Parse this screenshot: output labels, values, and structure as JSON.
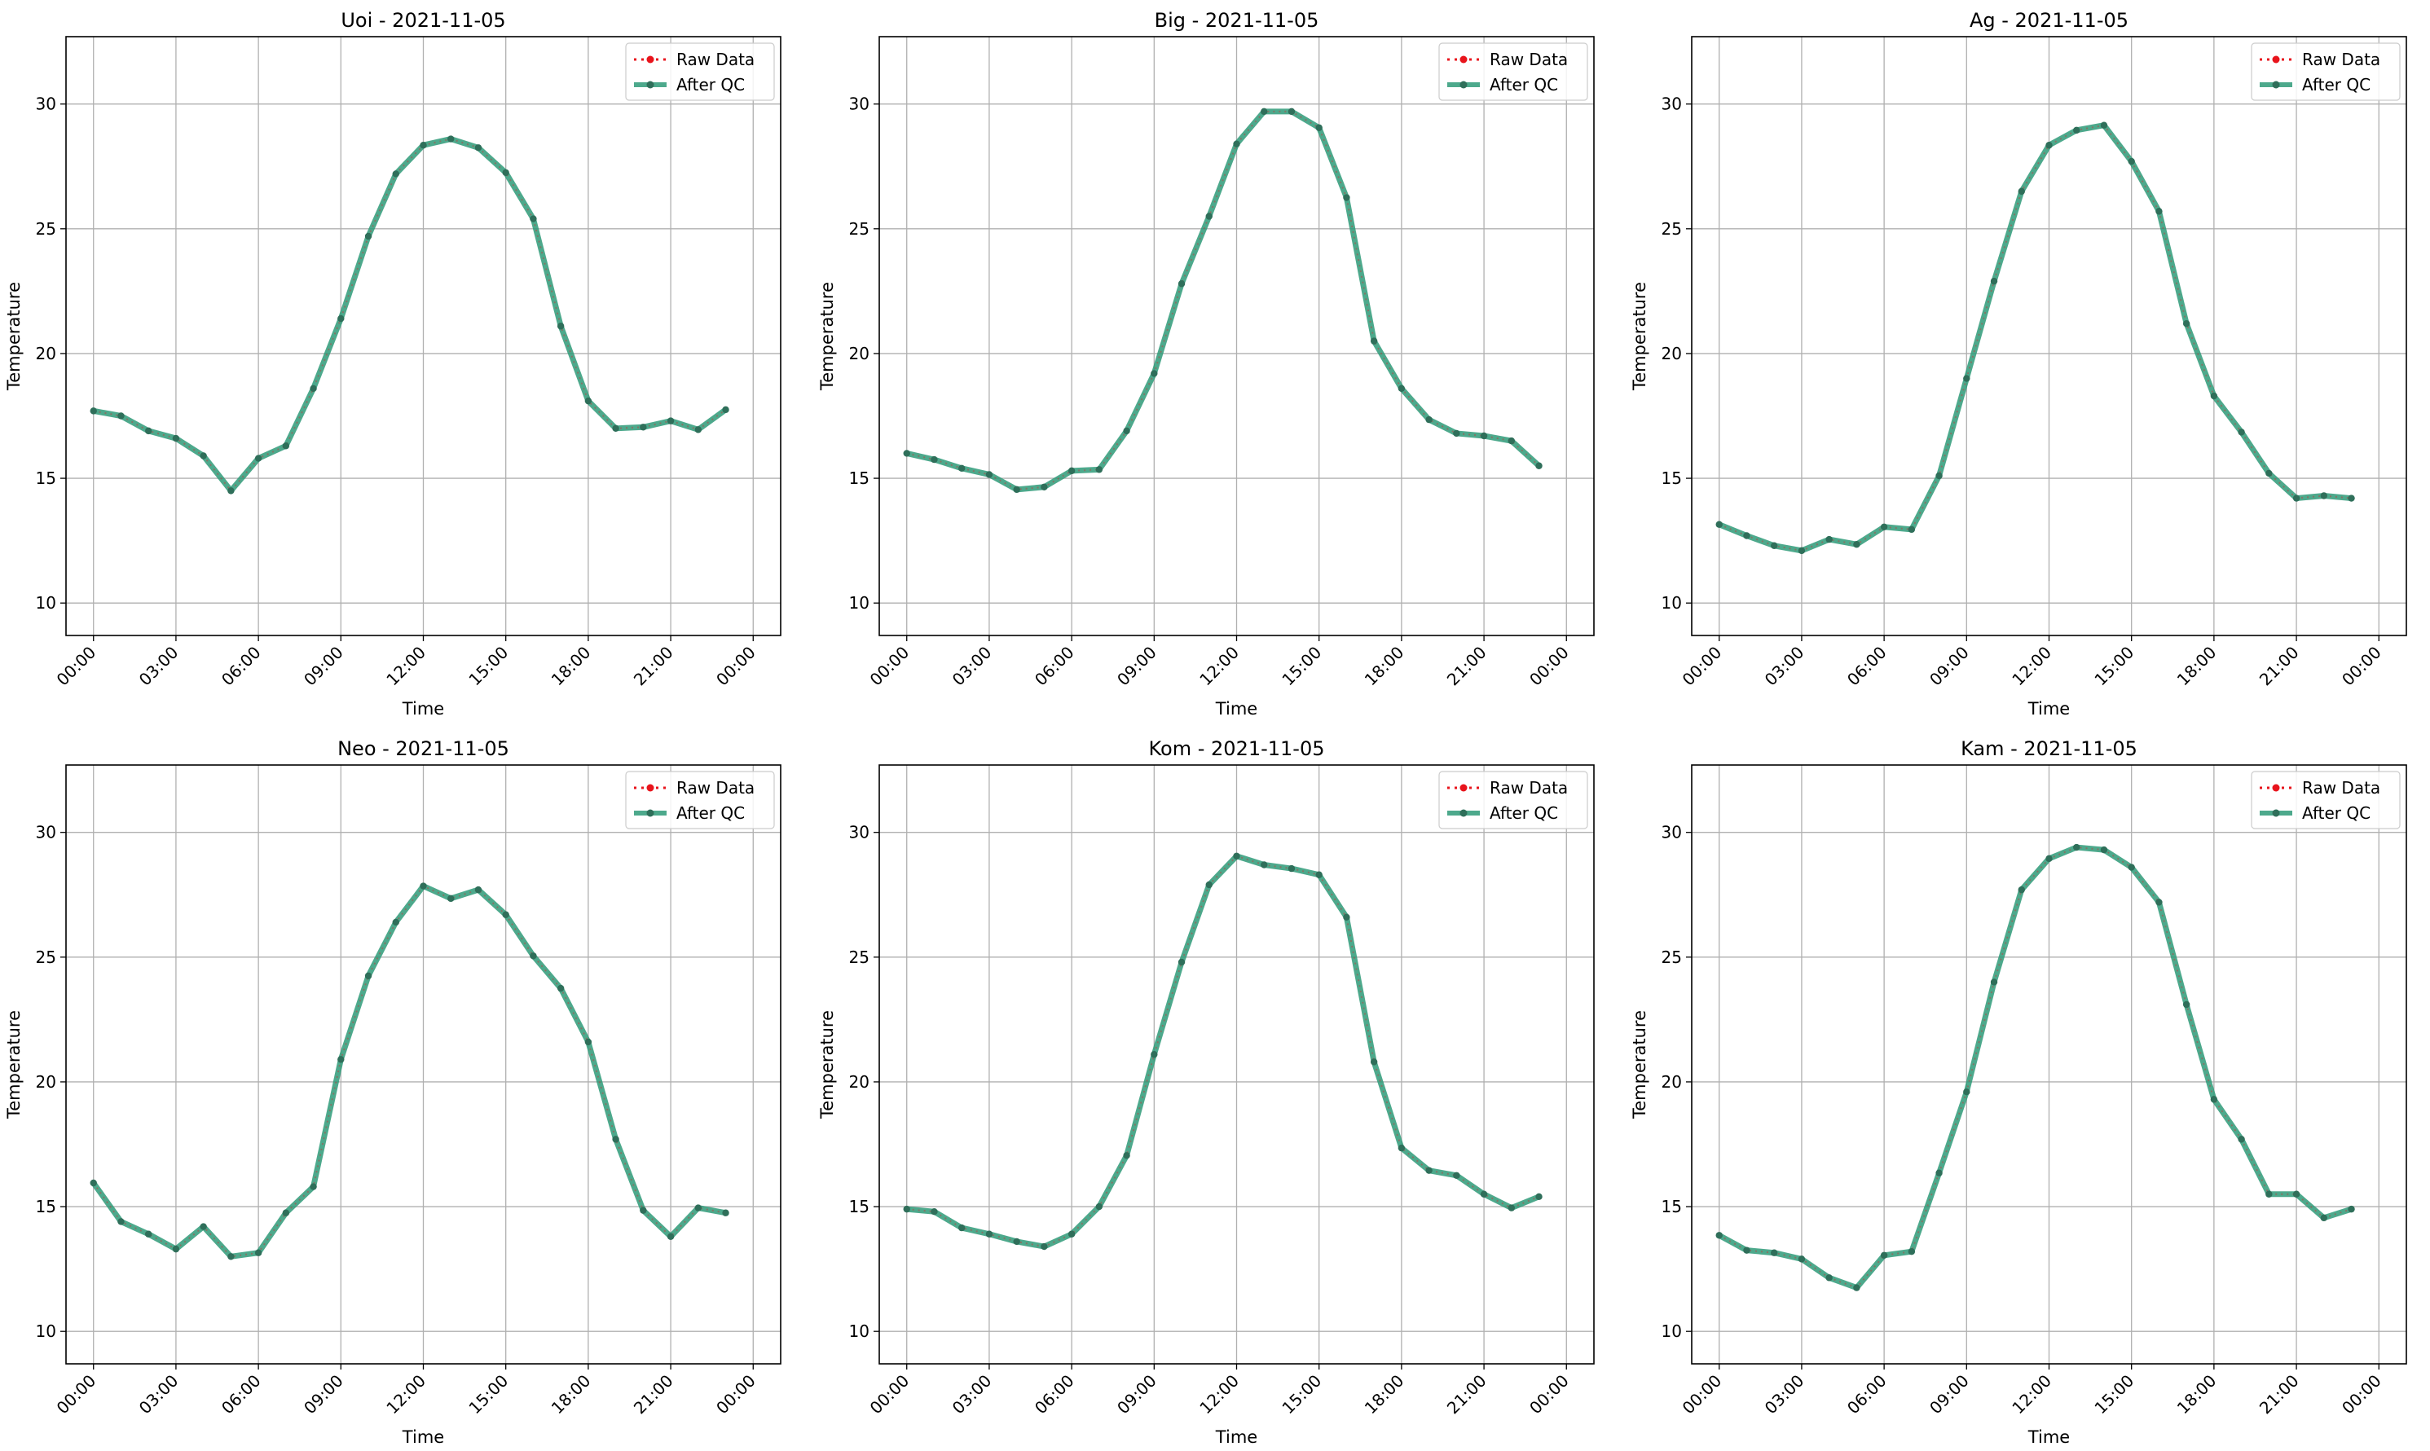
{
  "chart_data": [
    {
      "type": "line",
      "title": "Uoi - 2021-11-05",
      "xlabel": "Time",
      "ylabel": "Temperature",
      "xlim": [
        "00:00",
        "24:00"
      ],
      "ylim": [
        8.7,
        32.7
      ],
      "xticks": [
        "00:00",
        "03:00",
        "06:00",
        "09:00",
        "12:00",
        "15:00",
        "18:00",
        "21:00",
        "00:00"
      ],
      "yticks": [
        10,
        15,
        20,
        25,
        30
      ],
      "grid": true,
      "legend": "upper right",
      "x": [
        "00:00",
        "01:00",
        "02:00",
        "03:00",
        "04:00",
        "05:00",
        "06:00",
        "07:00",
        "08:00",
        "09:00",
        "10:00",
        "11:00",
        "12:00",
        "13:00",
        "14:00",
        "15:00",
        "16:00",
        "17:00",
        "18:00",
        "19:00",
        "20:00",
        "21:00",
        "22:00",
        "23:00"
      ],
      "series": [
        {
          "name": "Raw Data",
          "values": [
            17.7,
            17.5,
            16.9,
            16.6,
            15.9,
            14.5,
            15.8,
            16.3,
            18.6,
            21.4,
            24.7,
            27.2,
            28.35,
            28.6,
            28.25,
            27.25,
            25.4,
            21.1,
            18.1,
            17.0,
            17.05,
            17.3,
            16.95,
            17.75
          ]
        },
        {
          "name": "After QC",
          "values": [
            17.7,
            17.5,
            16.9,
            16.6,
            15.9,
            14.5,
            15.8,
            16.3,
            18.6,
            21.4,
            24.7,
            27.2,
            28.35,
            28.6,
            28.25,
            27.25,
            25.4,
            21.1,
            18.1,
            17.0,
            17.05,
            17.3,
            16.95,
            17.75
          ]
        }
      ]
    },
    {
      "type": "line",
      "title": "Big - 2021-11-05",
      "xlabel": "Time",
      "ylabel": "Temperature",
      "xlim": [
        "00:00",
        "24:00"
      ],
      "ylim": [
        8.7,
        32.7
      ],
      "xticks": [
        "00:00",
        "03:00",
        "06:00",
        "09:00",
        "12:00",
        "15:00",
        "18:00",
        "21:00",
        "00:00"
      ],
      "yticks": [
        10,
        15,
        20,
        25,
        30
      ],
      "grid": true,
      "legend": "upper right",
      "x": [
        "00:00",
        "01:00",
        "02:00",
        "03:00",
        "04:00",
        "05:00",
        "06:00",
        "07:00",
        "08:00",
        "09:00",
        "10:00",
        "11:00",
        "12:00",
        "13:00",
        "14:00",
        "15:00",
        "16:00",
        "17:00",
        "18:00",
        "19:00",
        "20:00",
        "21:00",
        "22:00",
        "23:00"
      ],
      "series": [
        {
          "name": "Raw Data",
          "values": [
            16.0,
            15.75,
            15.4,
            15.15,
            14.55,
            14.65,
            15.3,
            15.35,
            16.9,
            19.2,
            22.8,
            25.5,
            28.4,
            29.7,
            29.7,
            29.05,
            26.25,
            20.5,
            18.6,
            17.35,
            16.8,
            16.7,
            16.5,
            15.5
          ]
        },
        {
          "name": "After QC",
          "values": [
            16.0,
            15.75,
            15.4,
            15.15,
            14.55,
            14.65,
            15.3,
            15.35,
            16.9,
            19.2,
            22.8,
            25.5,
            28.4,
            29.7,
            29.7,
            29.05,
            26.25,
            20.5,
            18.6,
            17.35,
            16.8,
            16.7,
            16.5,
            15.5
          ]
        }
      ]
    },
    {
      "type": "line",
      "title": "Ag - 2021-11-05",
      "xlabel": "Time",
      "ylabel": "Temperature",
      "xlim": [
        "00:00",
        "24:00"
      ],
      "ylim": [
        8.7,
        32.7
      ],
      "xticks": [
        "00:00",
        "03:00",
        "06:00",
        "09:00",
        "12:00",
        "15:00",
        "18:00",
        "21:00",
        "00:00"
      ],
      "yticks": [
        10,
        15,
        20,
        25,
        30
      ],
      "grid": true,
      "legend": "upper right",
      "x": [
        "00:00",
        "01:00",
        "02:00",
        "03:00",
        "04:00",
        "05:00",
        "06:00",
        "07:00",
        "08:00",
        "09:00",
        "10:00",
        "11:00",
        "12:00",
        "13:00",
        "14:00",
        "15:00",
        "16:00",
        "17:00",
        "18:00",
        "19:00",
        "20:00",
        "21:00",
        "22:00",
        "23:00"
      ],
      "series": [
        {
          "name": "Raw Data",
          "values": [
            13.15,
            12.7,
            12.3,
            12.1,
            12.55,
            12.35,
            13.05,
            12.95,
            15.1,
            19.0,
            22.9,
            26.5,
            28.35,
            28.95,
            29.15,
            27.7,
            25.7,
            21.2,
            18.3,
            16.85,
            15.2,
            14.2,
            14.3,
            14.2
          ]
        },
        {
          "name": "After QC",
          "values": [
            13.15,
            12.7,
            12.3,
            12.1,
            12.55,
            12.35,
            13.05,
            12.95,
            15.1,
            19.0,
            22.9,
            26.5,
            28.35,
            28.95,
            29.15,
            27.7,
            25.7,
            21.2,
            18.3,
            16.85,
            15.2,
            14.2,
            14.3,
            14.2
          ]
        }
      ]
    },
    {
      "type": "line",
      "title": "Neo - 2021-11-05",
      "xlabel": "Time",
      "ylabel": "Temperature",
      "xlim": [
        "00:00",
        "24:00"
      ],
      "ylim": [
        8.7,
        32.7
      ],
      "xticks": [
        "00:00",
        "03:00",
        "06:00",
        "09:00",
        "12:00",
        "15:00",
        "18:00",
        "21:00",
        "00:00"
      ],
      "yticks": [
        10,
        15,
        20,
        25,
        30
      ],
      "grid": true,
      "legend": "upper right",
      "x": [
        "00:00",
        "01:00",
        "02:00",
        "03:00",
        "04:00",
        "05:00",
        "06:00",
        "07:00",
        "08:00",
        "09:00",
        "10:00",
        "11:00",
        "12:00",
        "13:00",
        "14:00",
        "15:00",
        "16:00",
        "17:00",
        "18:00",
        "19:00",
        "20:00",
        "21:00",
        "22:00",
        "23:00"
      ],
      "series": [
        {
          "name": "Raw Data",
          "values": [
            15.95,
            14.4,
            13.9,
            13.3,
            14.2,
            13.0,
            13.15,
            14.75,
            15.8,
            20.9,
            24.25,
            26.4,
            27.85,
            27.35,
            27.7,
            26.7,
            25.05,
            23.75,
            21.6,
            17.7,
            14.85,
            13.8,
            14.95,
            14.75
          ]
        },
        {
          "name": "After QC",
          "values": [
            15.95,
            14.4,
            13.9,
            13.3,
            14.2,
            13.0,
            13.15,
            14.75,
            15.8,
            20.9,
            24.25,
            26.4,
            27.85,
            27.35,
            27.7,
            26.7,
            25.05,
            23.75,
            21.6,
            17.7,
            14.85,
            13.8,
            14.95,
            14.75
          ]
        }
      ]
    },
    {
      "type": "line",
      "title": "Kom - 2021-11-05",
      "xlabel": "Time",
      "ylabel": "Temperature",
      "xlim": [
        "00:00",
        "24:00"
      ],
      "ylim": [
        8.7,
        32.7
      ],
      "xticks": [
        "00:00",
        "03:00",
        "06:00",
        "09:00",
        "12:00",
        "15:00",
        "18:00",
        "21:00",
        "00:00"
      ],
      "yticks": [
        10,
        15,
        20,
        25,
        30
      ],
      "grid": true,
      "legend": "upper right",
      "x": [
        "00:00",
        "01:00",
        "02:00",
        "03:00",
        "04:00",
        "05:00",
        "06:00",
        "07:00",
        "08:00",
        "09:00",
        "10:00",
        "11:00",
        "12:00",
        "13:00",
        "14:00",
        "15:00",
        "16:00",
        "17:00",
        "18:00",
        "19:00",
        "20:00",
        "21:00",
        "22:00",
        "23:00"
      ],
      "series": [
        {
          "name": "Raw Data",
          "values": [
            14.9,
            14.8,
            14.15,
            13.9,
            13.6,
            13.4,
            13.9,
            15.0,
            17.05,
            21.1,
            24.8,
            27.9,
            29.05,
            28.7,
            28.55,
            28.3,
            26.6,
            20.8,
            17.35,
            16.45,
            16.25,
            15.5,
            14.95,
            15.4
          ]
        },
        {
          "name": "After QC",
          "values": [
            14.9,
            14.8,
            14.15,
            13.9,
            13.6,
            13.4,
            13.9,
            15.0,
            17.05,
            21.1,
            24.8,
            27.9,
            29.05,
            28.7,
            28.55,
            28.3,
            26.6,
            20.8,
            17.35,
            16.45,
            16.25,
            15.5,
            14.95,
            15.4
          ]
        }
      ]
    },
    {
      "type": "line",
      "title": "Kam - 2021-11-05",
      "xlabel": "Time",
      "ylabel": "Temperature",
      "xlim": [
        "00:00",
        "24:00"
      ],
      "ylim": [
        8.7,
        32.7
      ],
      "xticks": [
        "00:00",
        "03:00",
        "06:00",
        "09:00",
        "12:00",
        "15:00",
        "18:00",
        "21:00",
        "00:00"
      ],
      "yticks": [
        10,
        15,
        20,
        25,
        30
      ],
      "grid": true,
      "legend": "upper right",
      "x": [
        "00:00",
        "01:00",
        "02:00",
        "03:00",
        "04:00",
        "05:00",
        "06:00",
        "07:00",
        "08:00",
        "09:00",
        "10:00",
        "11:00",
        "12:00",
        "13:00",
        "14:00",
        "15:00",
        "16:00",
        "17:00",
        "18:00",
        "19:00",
        "20:00",
        "21:00",
        "22:00",
        "23:00"
      ],
      "series": [
        {
          "name": "Raw Data",
          "values": [
            13.85,
            13.25,
            13.15,
            12.9,
            12.15,
            11.75,
            13.05,
            13.2,
            16.35,
            19.6,
            24.0,
            27.7,
            28.95,
            29.4,
            29.3,
            28.6,
            27.2,
            23.1,
            19.3,
            17.7,
            15.5,
            15.5,
            14.55,
            14.9
          ]
        },
        {
          "name": "After QC",
          "values": [
            13.85,
            13.25,
            13.15,
            12.9,
            12.15,
            11.75,
            13.05,
            13.2,
            16.35,
            19.6,
            24.0,
            27.7,
            28.95,
            29.4,
            29.3,
            28.6,
            27.2,
            23.1,
            19.3,
            17.7,
            15.5,
            15.5,
            14.55,
            14.9
          ]
        }
      ]
    }
  ],
  "colors": {
    "raw": "#e8141c",
    "qc_line": "#2e9a78",
    "qc_marker": "#2f6f5a",
    "grid": "#b0b0b0",
    "axes": "#000000"
  }
}
